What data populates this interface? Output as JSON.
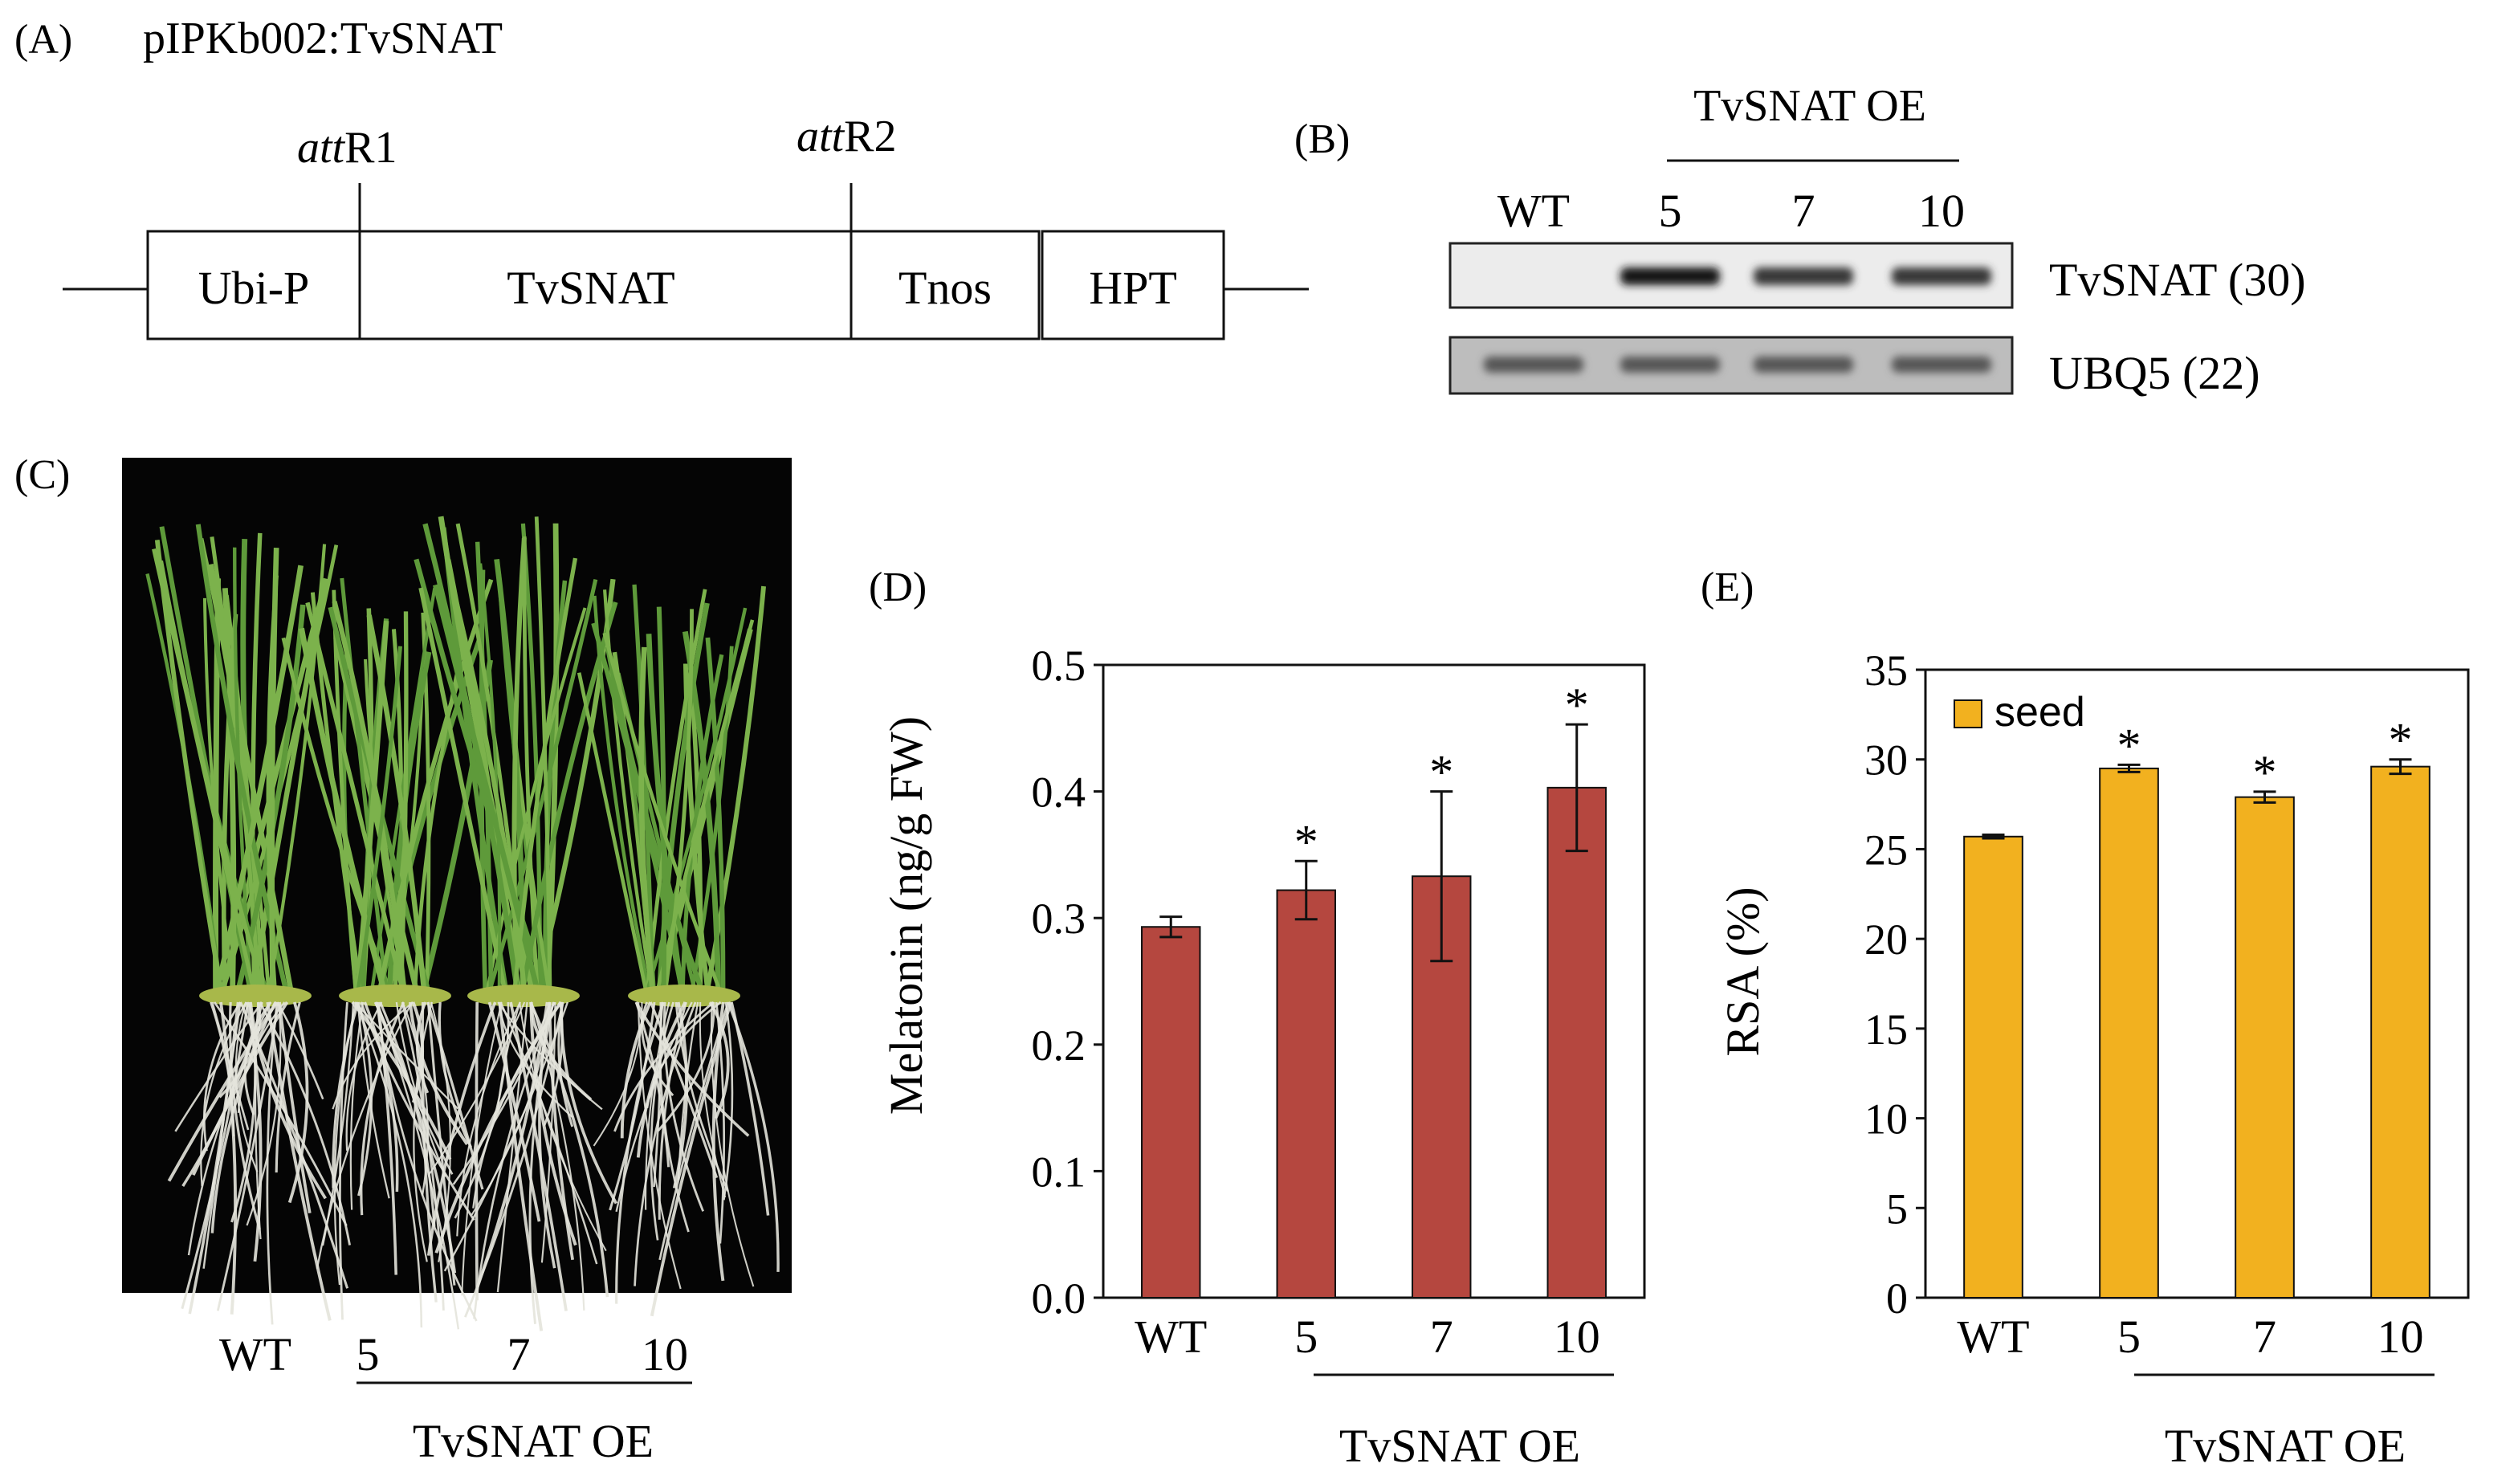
{
  "panel_a": {
    "label": "(A)",
    "construct": "pIPKb002:TvSNAT",
    "site1_italic": "att",
    "site1_rest": "R1",
    "site2_italic": "att",
    "site2_rest": "R2",
    "segments": [
      "Ubi-P",
      "TvSNAT",
      "Tnos",
      "HPT"
    ]
  },
  "panel_b": {
    "label": "(B)",
    "group_label": "TvSNAT OE",
    "lanes": [
      "WT",
      "5",
      "7",
      "10"
    ],
    "rows": [
      "TvSNAT (30)",
      "UBQ5 (22)"
    ],
    "tvsnat_intensity": [
      0.0,
      1.0,
      0.72,
      0.72
    ],
    "ubq5_intensity": [
      0.7,
      0.7,
      0.7,
      0.7
    ]
  },
  "panel_c": {
    "label": "(C)",
    "lanes": [
      "WT",
      "5",
      "7",
      "10"
    ],
    "group_label": "TvSNAT OE"
  },
  "chart_data": [
    {
      "panel": "(D)",
      "type": "bar",
      "categories": [
        "WT",
        "5",
        "7",
        "10"
      ],
      "values": [
        0.293,
        0.322,
        0.333,
        0.403
      ],
      "errors": [
        0.008,
        0.023,
        0.067,
        0.05
      ],
      "significance": [
        "",
        "*",
        "*",
        "*"
      ],
      "ylabel": "Melatonin (ng/g FW)",
      "ylim": [
        0,
        0.5
      ],
      "yticks": [
        "0.0",
        "0.1",
        "0.2",
        "0.3",
        "0.4",
        "0.5"
      ],
      "group_label": "TvSNAT OE",
      "color": "#b5473f"
    },
    {
      "panel": "(E)",
      "type": "bar",
      "categories": [
        "WT",
        "5",
        "7",
        "10"
      ],
      "values": [
        25.7,
        29.5,
        27.9,
        29.6
      ],
      "errors": [
        0.1,
        0.2,
        0.3,
        0.4
      ],
      "significance": [
        "",
        "*",
        "*",
        "*"
      ],
      "ylabel": "RSA (%)",
      "ylim": [
        0,
        35
      ],
      "yticks": [
        "0",
        "5",
        "10",
        "15",
        "20",
        "25",
        "30",
        "35"
      ],
      "legend": "seed",
      "group_label": "TvSNAT OE",
      "color": "#f2b11f"
    }
  ]
}
